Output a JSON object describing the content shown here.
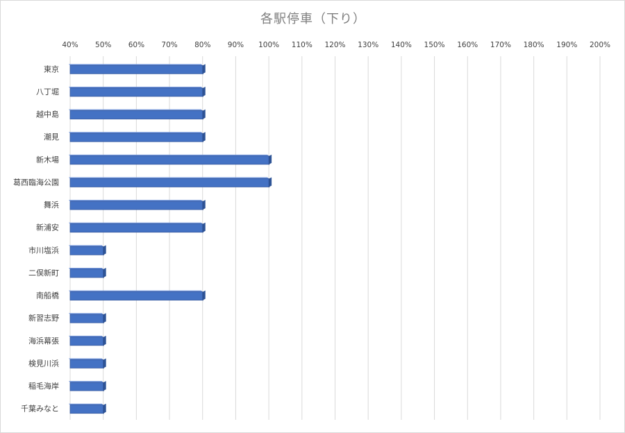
{
  "chart_data": {
    "type": "bar",
    "orientation": "horizontal",
    "title": "各駅停車（下り）",
    "xlabel": "",
    "ylabel": "",
    "xlim": [
      0.4,
      2.0
    ],
    "x_ticks": [
      "40%",
      "50%",
      "60%",
      "70%",
      "80%",
      "90%",
      "100%",
      "110%",
      "120%",
      "130%",
      "140%",
      "150%",
      "160%",
      "170%",
      "180%",
      "190%",
      "200%"
    ],
    "x_axis_position": "top",
    "grid": true,
    "legend": "none",
    "bar_color": "#4472c4",
    "categories": [
      "東京",
      "八丁堀",
      "越中島",
      "潮見",
      "新木場",
      "葛西臨海公園",
      "舞浜",
      "新浦安",
      "市川塩浜",
      "二俣新町",
      "南船橋",
      "新習志野",
      "海浜幕張",
      "検見川浜",
      "稲毛海岸",
      "千葉みなと"
    ],
    "values": [
      0.8,
      0.8,
      0.8,
      0.8,
      1.0,
      1.0,
      0.8,
      0.8,
      0.5,
      0.5,
      0.8,
      0.5,
      0.5,
      0.5,
      0.5,
      0.5
    ]
  }
}
